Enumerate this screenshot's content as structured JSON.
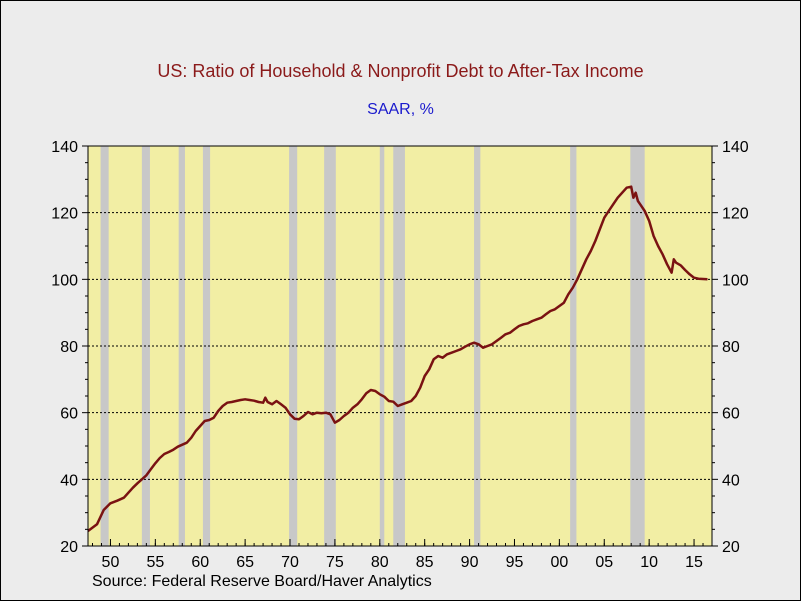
{
  "chart_data": {
    "type": "line",
    "title": "US: Ratio of Household & Nonprofit Debt to After-Tax  Income",
    "subtitle": "SAAR, %",
    "source": "Source:  Federal Reserve Board/Haver Analytics",
    "xlabel": "",
    "ylabel": "",
    "xlim": [
      1947.5,
      2017.0
    ],
    "ylim": [
      20,
      140
    ],
    "x_ticks": [
      1950,
      1955,
      1960,
      1965,
      1970,
      1975,
      1980,
      1985,
      1990,
      1995,
      2000,
      2005,
      2010,
      2015
    ],
    "x_tick_labels": [
      "50",
      "55",
      "60",
      "65",
      "70",
      "75",
      "80",
      "85",
      "90",
      "95",
      "00",
      "05",
      "10",
      "15"
    ],
    "y_ticks": [
      20,
      40,
      60,
      80,
      100,
      120,
      140
    ],
    "y_tick_labels": [
      "20",
      "40",
      "60",
      "80",
      "100",
      "120",
      "140"
    ],
    "grid": "horizontal dotted at 40, 60, 80, 100, 120",
    "recessions": [
      [
        1948.9,
        1949.8
      ],
      [
        1953.5,
        1954.4
      ],
      [
        1957.6,
        1958.3
      ],
      [
        1960.3,
        1961.1
      ],
      [
        1969.9,
        1970.8
      ],
      [
        1973.8,
        1975.1
      ],
      [
        1980.0,
        1980.5
      ],
      [
        1981.5,
        1982.8
      ],
      [
        1990.5,
        1991.2
      ],
      [
        2001.2,
        2001.9
      ],
      [
        2007.9,
        2009.5
      ]
    ],
    "colors": {
      "plot_background": "#f2eea4",
      "recession_band": "#c8c8c8",
      "line": "#7a1212",
      "title": "#8b1a1a",
      "subtitle": "#1a1acd"
    },
    "series": [
      {
        "x": [
          1947.5,
          1948.5,
          1949.25,
          1950.0,
          1950.75,
          1951.5,
          1952.0,
          1952.5,
          1953.0,
          1953.5,
          1954.0,
          1954.5,
          1955.0,
          1955.5,
          1956.0,
          1956.5,
          1957.0,
          1957.5,
          1958.0,
          1958.5,
          1959.0,
          1959.5,
          1960.0,
          1960.5,
          1961.0,
          1961.5,
          1962.0,
          1962.5,
          1963.0,
          1963.5,
          1964.0,
          1964.5,
          1965.0,
          1965.5,
          1966.0,
          1966.5,
          1967.0,
          1967.25,
          1967.5,
          1968.0,
          1968.5,
          1969.0,
          1969.5,
          1970.0,
          1970.5,
          1971.0,
          1971.5,
          1972.0,
          1972.5,
          1973.0,
          1973.5,
          1974.0,
          1974.5,
          1975.0,
          1975.5,
          1976.0,
          1976.5,
          1977.0,
          1977.5,
          1978.0,
          1978.5,
          1979.0,
          1979.5,
          1980.0,
          1980.5,
          1981.0,
          1981.5,
          1982.0,
          1982.5,
          1983.0,
          1983.5,
          1984.0,
          1984.5,
          1985.0,
          1985.5,
          1986.0,
          1986.5,
          1987.0,
          1987.5,
          1988.0,
          1988.5,
          1989.0,
          1989.5,
          1990.0,
          1990.5,
          1991.0,
          1991.5,
          1992.0,
          1992.5,
          1993.0,
          1993.5,
          1994.0,
          1994.5,
          1995.0,
          1995.5,
          1996.0,
          1996.5,
          1997.0,
          1997.5,
          1998.0,
          1998.5,
          1999.0,
          1999.5,
          2000.0,
          2000.5,
          2001.0,
          2001.5,
          2002.0,
          2002.5,
          2003.0,
          2003.5,
          2004.0,
          2004.5,
          2005.0,
          2005.5,
          2006.0,
          2006.5,
          2007.0,
          2007.5,
          2008.0,
          2008.25,
          2008.5,
          2008.75,
          2009.0,
          2009.5,
          2010.0,
          2010.5,
          2011.0,
          2011.5,
          2012.0,
          2012.5,
          2012.75,
          2013.0,
          2013.5,
          2014.0,
          2014.5,
          2015.0,
          2015.5,
          2016.0,
          2016.5
        ],
        "values": [
          24.5,
          26.5,
          30.8,
          32.8,
          33.6,
          34.5,
          36.0,
          37.5,
          38.8,
          40.0,
          41.2,
          43.0,
          44.8,
          46.4,
          47.6,
          48.2,
          48.9,
          49.8,
          50.4,
          51.0,
          52.5,
          54.5,
          56.0,
          57.5,
          57.8,
          58.5,
          60.5,
          62.0,
          63.0,
          63.2,
          63.5,
          63.8,
          64.0,
          63.8,
          63.6,
          63.2,
          63.0,
          64.5,
          63.2,
          62.5,
          63.5,
          62.5,
          61.5,
          59.5,
          58.2,
          58.0,
          59.0,
          60.2,
          59.5,
          60.0,
          59.8,
          60.0,
          59.5,
          57.0,
          57.8,
          59.0,
          60.0,
          61.5,
          62.5,
          64.0,
          65.8,
          66.8,
          66.5,
          65.5,
          64.8,
          63.5,
          63.3,
          62.0,
          62.5,
          63.0,
          63.5,
          65.0,
          67.5,
          71.0,
          73.0,
          76.0,
          77.0,
          76.5,
          77.5,
          78.0,
          78.5,
          79.0,
          79.8,
          80.5,
          81.0,
          80.5,
          79.5,
          80.0,
          80.5,
          81.5,
          82.5,
          83.5,
          84.0,
          85.0,
          86.0,
          86.5,
          86.8,
          87.5,
          88.0,
          88.5,
          89.5,
          90.5,
          91.0,
          92.0,
          93.0,
          95.5,
          97.5,
          100.0,
          103.0,
          106.0,
          108.5,
          111.5,
          115.0,
          118.5,
          120.5,
          122.5,
          124.5,
          126.0,
          127.5,
          127.8,
          124.5,
          126.0,
          123.5,
          122.5,
          120.5,
          117.5,
          113.0,
          110.0,
          107.5,
          104.5,
          102.0,
          106.0,
          105.0,
          104.2,
          102.8,
          101.5,
          100.5,
          100.2,
          100.1,
          100.0
        ]
      }
    ]
  }
}
